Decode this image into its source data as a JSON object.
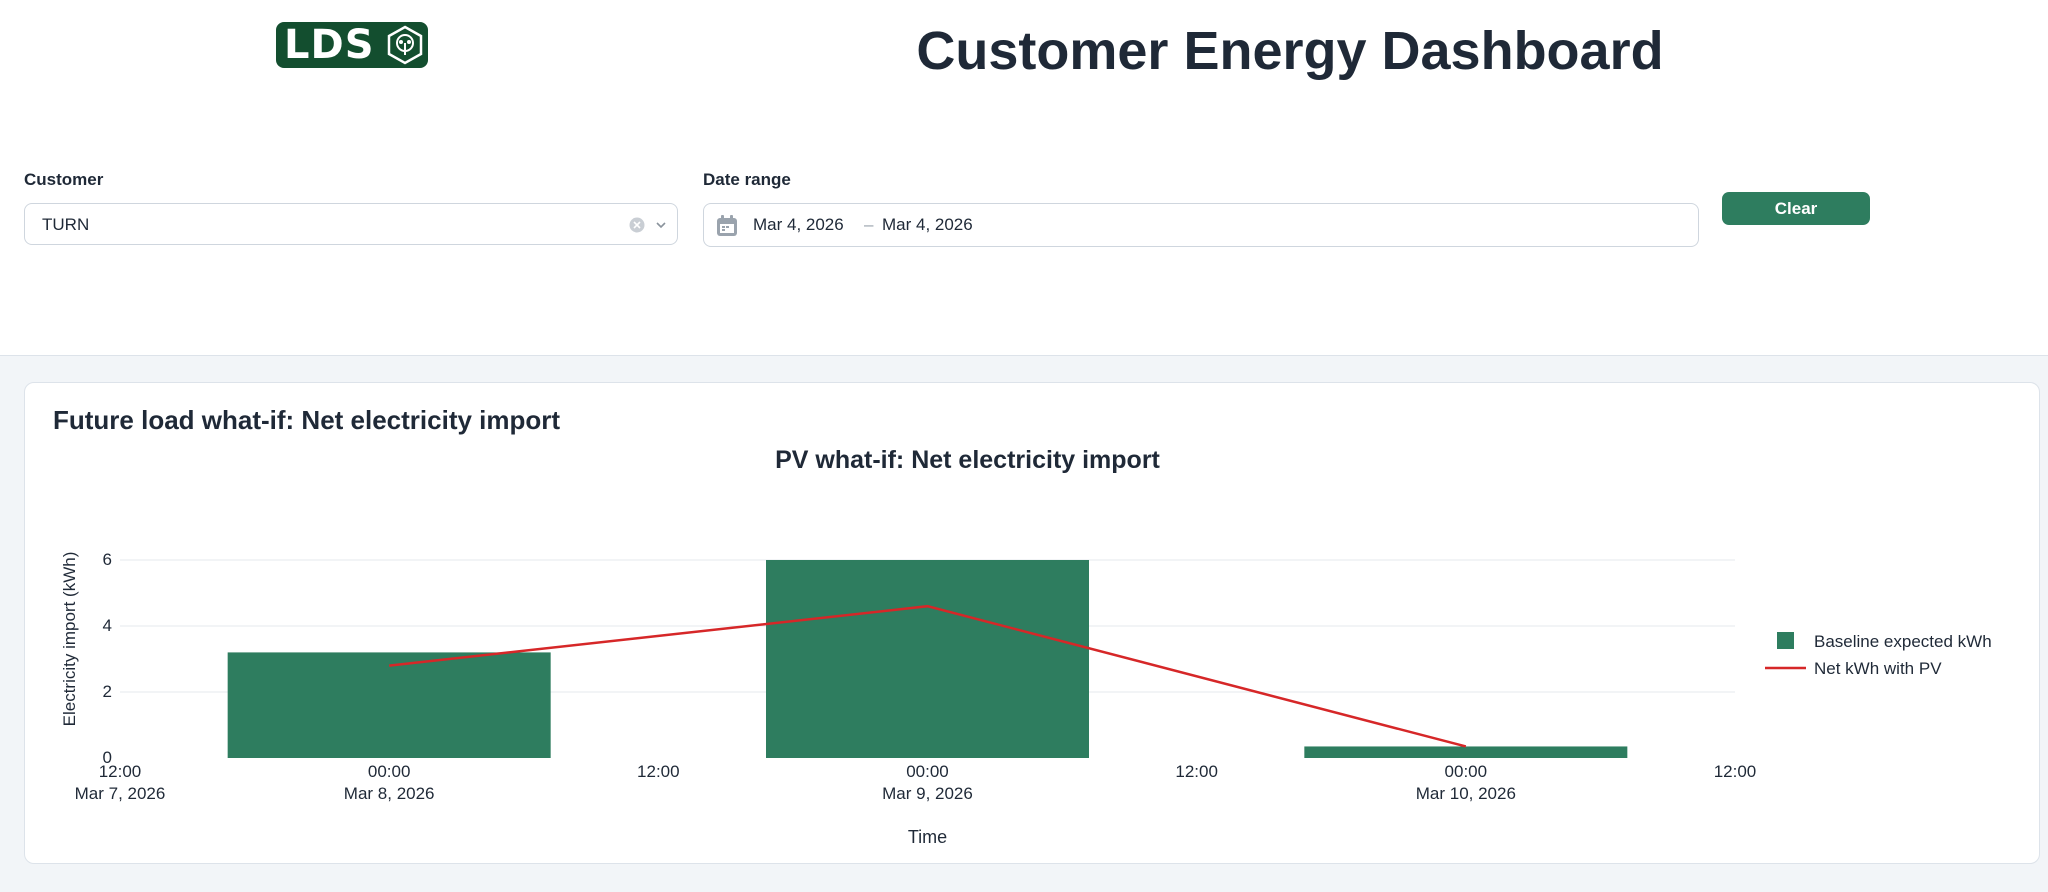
{
  "header": {
    "logo_text": "LDS",
    "title": "Customer Energy Dashboard"
  },
  "filters": {
    "customer_label": "Customer",
    "customer_value": "TURN",
    "date_label": "Date range",
    "date_from": "Mar 4, 2026",
    "date_separator": "–",
    "date_to": "Mar 4, 2026",
    "clear_label": "Clear"
  },
  "card": {
    "title": "Future load what-if: Net electricity import"
  },
  "colors": {
    "brand": "#134e2f",
    "bar": "#2e7d5f",
    "line": "#d62728",
    "button": "#2e7d5f"
  },
  "chart_data": {
    "type": "bar",
    "title": "PV what-if: Net electricity import",
    "xlabel": "Time",
    "ylabel": "Electricity import (kWh)",
    "ylim": [
      0,
      6
    ],
    "yticks": [
      0,
      2,
      4,
      6
    ],
    "xlim": [
      "2026-03-07T12:00",
      "2026-03-10T12:00"
    ],
    "xticks": [
      {
        "at": "2026-03-07T12:00",
        "line1": "12:00",
        "line2": "Mar 7, 2026"
      },
      {
        "at": "2026-03-08T00:00",
        "line1": "00:00",
        "line2": "Mar 8, 2026"
      },
      {
        "at": "2026-03-08T12:00",
        "line1": "12:00",
        "line2": ""
      },
      {
        "at": "2026-03-09T00:00",
        "line1": "00:00",
        "line2": "Mar 9, 2026"
      },
      {
        "at": "2026-03-09T12:00",
        "line1": "12:00",
        "line2": ""
      },
      {
        "at": "2026-03-10T00:00",
        "line1": "00:00",
        "line2": "Mar 10, 2026"
      },
      {
        "at": "2026-03-10T12:00",
        "line1": "12:00",
        "line2": ""
      }
    ],
    "x": [
      "2026-03-08",
      "2026-03-09",
      "2026-03-10"
    ],
    "grid": true,
    "legend_position": "right",
    "series": [
      {
        "name": "Baseline expected kWh",
        "type": "bar",
        "values": [
          3.2,
          6.0,
          0.35
        ]
      },
      {
        "name": "Net kWh with PV",
        "type": "line",
        "values": [
          2.8,
          4.6,
          0.35
        ]
      }
    ]
  }
}
